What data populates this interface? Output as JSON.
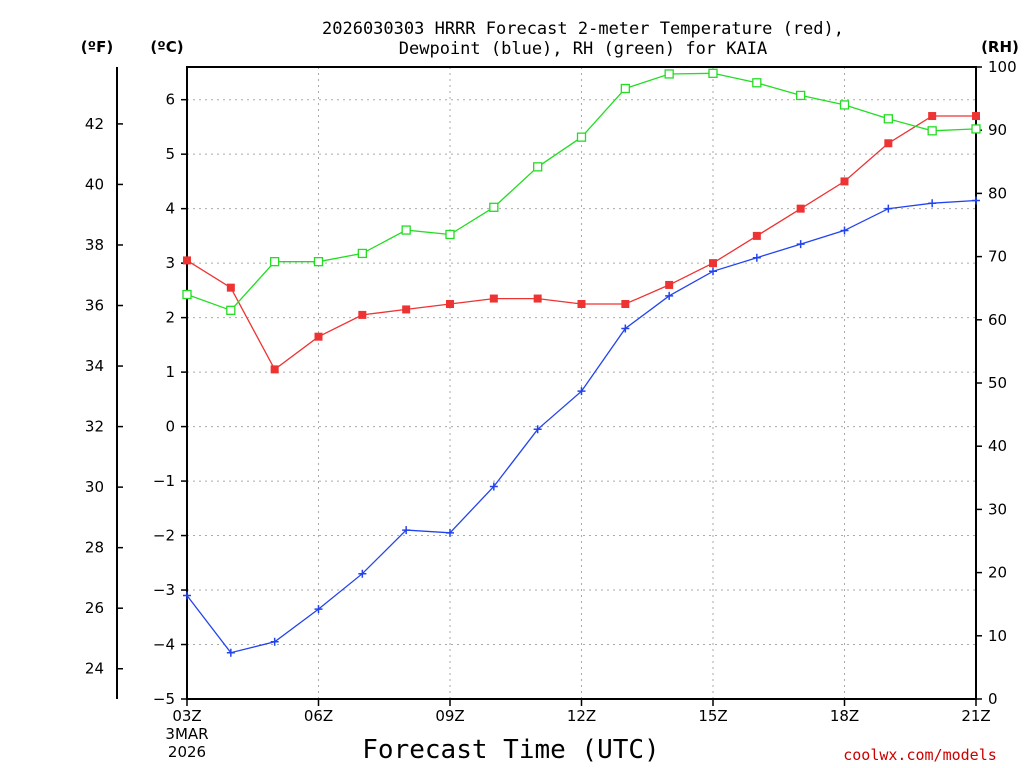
{
  "chart_data": {
    "type": "line",
    "title_line1": "2026030303 HRRR Forecast 2-meter Temperature (red),",
    "title_line2": "Dewpoint (blue), RH (green) for KAIA",
    "xlabel": "Forecast Time (UTC)",
    "credit": "coolwx.com/models",
    "units": {
      "fahrenheit": "(ºF)",
      "celsius": "(ºC)",
      "rh": "(RH)"
    },
    "x_hours": [
      3,
      4,
      5,
      6,
      7,
      8,
      9,
      10,
      11,
      12,
      13,
      14,
      15,
      16,
      17,
      18,
      19,
      20,
      21
    ],
    "xlim": [
      3,
      21
    ],
    "x_ticks": [
      {
        "hour": 3,
        "label": "03Z"
      },
      {
        "hour": 6,
        "label": "06Z"
      },
      {
        "hour": 9,
        "label": "09Z"
      },
      {
        "hour": 12,
        "label": "12Z"
      },
      {
        "hour": 15,
        "label": "15Z"
      },
      {
        "hour": 18,
        "label": "18Z"
      },
      {
        "hour": 21,
        "label": "21Z"
      }
    ],
    "date_line1": "3MAR",
    "date_line2": "2026",
    "ylim_celsius": [
      -5,
      6.6
    ],
    "y_ticks_celsius": [
      "-5",
      "-4",
      "-3",
      "-2",
      "-1",
      "0",
      "1",
      "2",
      "3",
      "4",
      "5",
      "6"
    ],
    "ylim_rh": [
      0,
      100
    ],
    "y_ticks_rh": [
      "0",
      "10",
      "20",
      "30",
      "40",
      "50",
      "60",
      "70",
      "80",
      "90",
      "100"
    ],
    "y_ticks_fahrenheit": [
      "24",
      "26",
      "28",
      "30",
      "32",
      "34",
      "36",
      "38",
      "40",
      "42"
    ],
    "series": [
      {
        "name": "Temperature",
        "axis": "celsius",
        "color": "#ee3333",
        "marker": "filled-square",
        "values": [
          3.05,
          2.55,
          1.05,
          1.65,
          2.05,
          2.15,
          2.25,
          2.35,
          2.35,
          2.25,
          2.25,
          2.6,
          3.0,
          3.5,
          4.0,
          4.5,
          5.2,
          5.7,
          5.7
        ]
      },
      {
        "name": "Dewpoint",
        "axis": "celsius",
        "color": "#2244ee",
        "marker": "plus",
        "values": [
          -3.1,
          -4.15,
          -3.95,
          -3.35,
          -2.7,
          -1.9,
          -1.95,
          -1.1,
          -0.05,
          0.65,
          1.8,
          2.4,
          2.85,
          3.1,
          3.35,
          3.6,
          4.0,
          4.1,
          4.15
        ]
      },
      {
        "name": "Relative Humidity",
        "axis": "rh",
        "color": "#22dd22",
        "marker": "open-square",
        "values": [
          64,
          61.5,
          69.2,
          69.2,
          70.5,
          74.2,
          73.5,
          77.8,
          84.2,
          88.9,
          96.6,
          98.9,
          99,
          97.5,
          95.5,
          94,
          91.8,
          89.9,
          90.2
        ]
      }
    ]
  }
}
